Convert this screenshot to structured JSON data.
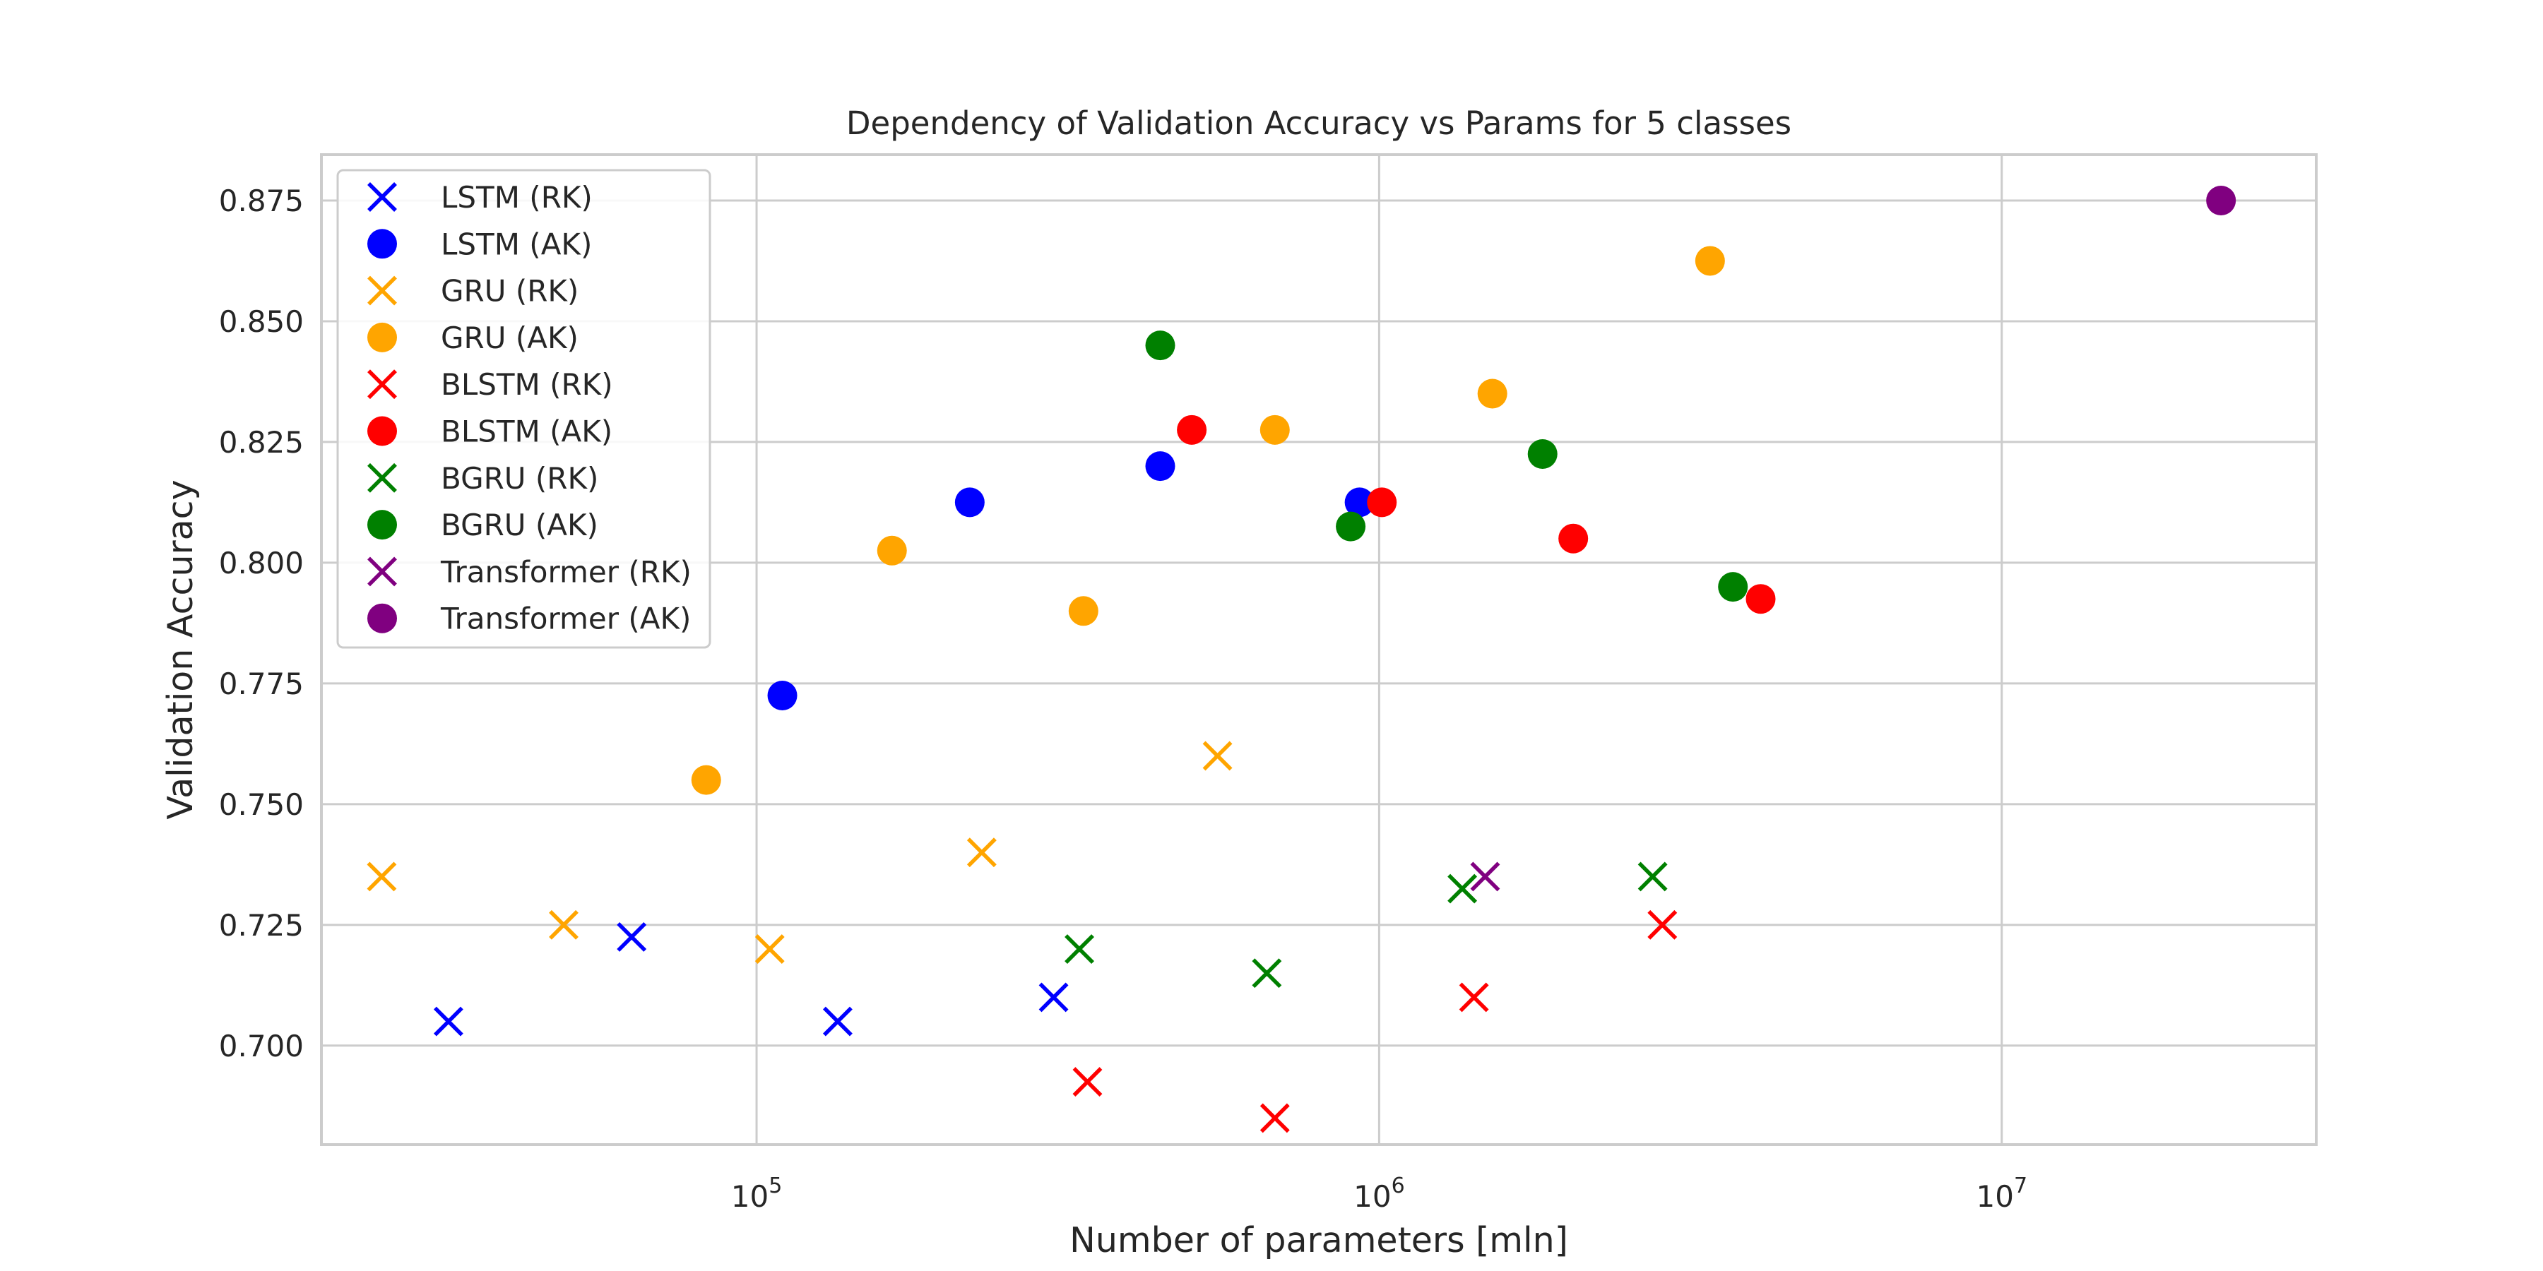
{
  "chart_data": {
    "type": "scatter",
    "title": "Dependency of Validation Accuracy vs Params for 5 classes",
    "xlabel": "Number of parameters [mln]",
    "ylabel": "Validation Accuracy",
    "xscale": "log",
    "xlim": [
      20000,
      32000000
    ],
    "ylim": [
      0.6795,
      0.8845
    ],
    "x_ticks": [
      {
        "value": 100000,
        "base": "10",
        "exp": "5"
      },
      {
        "value": 1000000,
        "base": "10",
        "exp": "6"
      },
      {
        "value": 10000000,
        "base": "10",
        "exp": "7"
      }
    ],
    "y_ticks": [
      0.7,
      0.725,
      0.75,
      0.775,
      0.8,
      0.825,
      0.85,
      0.875
    ],
    "y_tick_labels": [
      "0.700",
      "0.725",
      "0.750",
      "0.775",
      "0.800",
      "0.825",
      "0.850",
      "0.875"
    ],
    "grid": true,
    "legend_position": "upper-left",
    "series": [
      {
        "name": "LSTM (RK)",
        "marker": "x",
        "color": "#0000ff",
        "points": [
          [
            32000,
            0.705
          ],
          [
            63000,
            0.7225
          ],
          [
            135000,
            0.705
          ],
          [
            300000,
            0.71
          ]
        ]
      },
      {
        "name": "LSTM (AK)",
        "marker": "o",
        "color": "#0000ff",
        "points": [
          [
            110000,
            0.7725
          ],
          [
            220000,
            0.8125
          ],
          [
            445000,
            0.82
          ],
          [
            930000,
            0.8125
          ]
        ]
      },
      {
        "name": "GRU (RK)",
        "marker": "x",
        "color": "#ffa500",
        "points": [
          [
            25000,
            0.735
          ],
          [
            49000,
            0.725
          ],
          [
            105000,
            0.72
          ],
          [
            230000,
            0.74
          ],
          [
            550000,
            0.76
          ]
        ]
      },
      {
        "name": "GRU (AK)",
        "marker": "o",
        "color": "#ffa500",
        "points": [
          [
            83000,
            0.755
          ],
          [
            165000,
            0.8025
          ],
          [
            335000,
            0.79
          ],
          [
            680000,
            0.8275
          ],
          [
            1520000,
            0.835
          ],
          [
            3400000,
            0.8625
          ]
        ]
      },
      {
        "name": "BLSTM (RK)",
        "marker": "x",
        "color": "#ff0000",
        "points": [
          [
            340000,
            0.6925
          ],
          [
            680000,
            0.685
          ],
          [
            1420000,
            0.71
          ],
          [
            2850000,
            0.725
          ]
        ]
      },
      {
        "name": "BLSTM (AK)",
        "marker": "o",
        "color": "#ff0000",
        "points": [
          [
            500000,
            0.8275
          ],
          [
            1010000,
            0.8125
          ],
          [
            2050000,
            0.805
          ],
          [
            4100000,
            0.7925
          ]
        ]
      },
      {
        "name": "BGRU (RK)",
        "marker": "x",
        "color": "#008000",
        "points": [
          [
            330000,
            0.72
          ],
          [
            660000,
            0.715
          ],
          [
            1360000,
            0.7325
          ],
          [
            2750000,
            0.735
          ]
        ]
      },
      {
        "name": "BGRU (AK)",
        "marker": "o",
        "color": "#008000",
        "points": [
          [
            445000,
            0.845
          ],
          [
            900000,
            0.8075
          ],
          [
            1830000,
            0.8225
          ],
          [
            3700000,
            0.795
          ]
        ]
      },
      {
        "name": "Transformer (RK)",
        "marker": "x",
        "color": "#800080",
        "points": [
          [
            1480000,
            0.735
          ]
        ]
      },
      {
        "name": "Transformer (AK)",
        "marker": "o",
        "color": "#800080",
        "points": [
          [
            22500000,
            0.875
          ]
        ]
      }
    ]
  }
}
